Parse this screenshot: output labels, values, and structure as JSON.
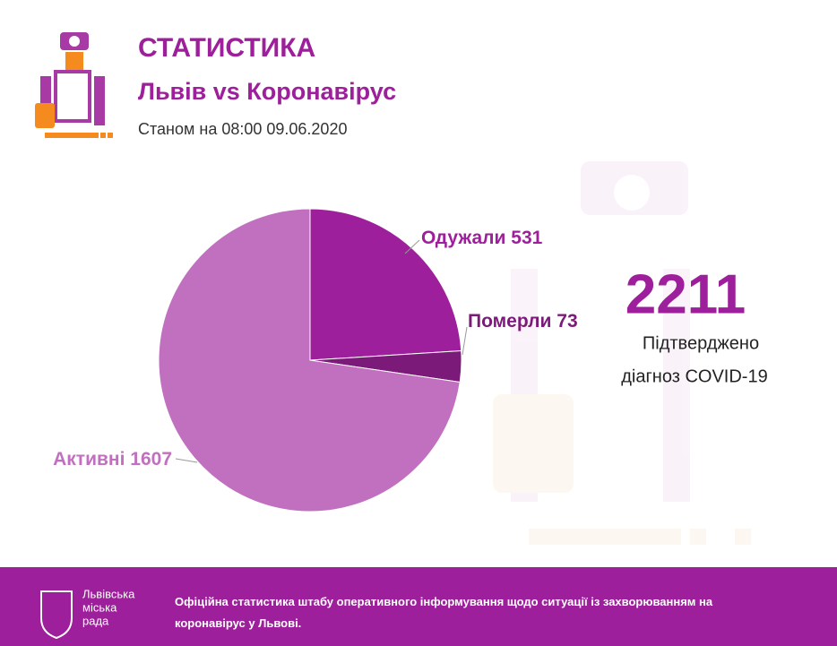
{
  "chart_data": {
    "type": "pie",
    "title": "СТАТИСТИКА",
    "subtitle": "Львів vs Коронавірус",
    "date": "Станом на 08:00 09.06.2020",
    "categories": [
      "Одужали",
      "Померли",
      "Активні"
    ],
    "values": [
      531,
      73,
      1607
    ],
    "colors": [
      "#9e1f9b",
      "#7c1a79",
      "#c170c0"
    ],
    "total": 2211,
    "total_label": [
      "Підтверджено",
      "діагноз COVID-19"
    ]
  },
  "footer": {
    "logo": [
      "Львівська",
      "міська",
      "рада"
    ],
    "text": "Офіційна статистика штабу оперативного інформування щодо ситуації із захворюванням на коронавірус у Львові."
  }
}
